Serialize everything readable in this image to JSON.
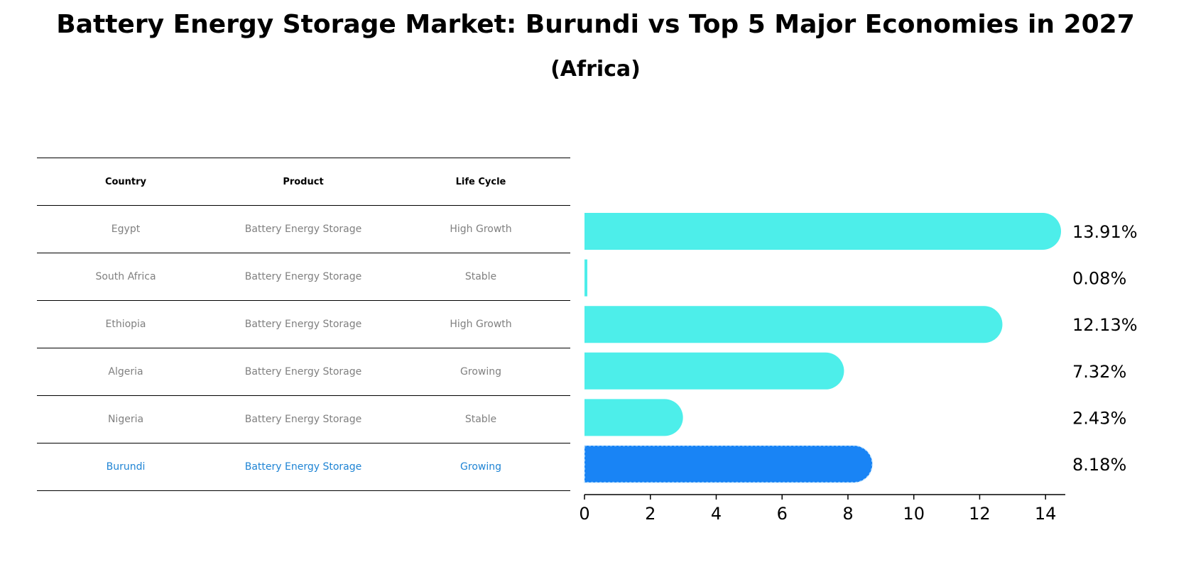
{
  "title": "Battery Energy Storage Market: Burundi vs Top 5 Major Economies in 2027",
  "subtitle": "(Africa)",
  "table": {
    "headers": [
      "Country",
      "Product",
      "Life Cycle"
    ],
    "rows": [
      [
        "Egypt",
        "Battery Energy Storage",
        "High Growth"
      ],
      [
        "South Africa",
        "Battery Energy Storage",
        "Stable"
      ],
      [
        "Ethiopia",
        "Battery Energy Storage",
        "High Growth"
      ],
      [
        "Algeria",
        "Battery Energy Storage",
        "Growing"
      ],
      [
        "Nigeria",
        "Battery Energy Storage",
        "Stable"
      ],
      [
        "Burundi",
        "Battery Energy Storage",
        "Growing"
      ]
    ],
    "highlight_row": 5
  },
  "chart_data": {
    "type": "bar",
    "orientation": "horizontal",
    "categories": [
      "Egypt",
      "South Africa",
      "Ethiopia",
      "Algeria",
      "Nigeria",
      "Burundi"
    ],
    "values": [
      13.91,
      0.08,
      12.13,
      7.32,
      2.43,
      8.18
    ],
    "value_labels": [
      "13.91%",
      "0.08%",
      "12.13%",
      "7.32%",
      "2.43%",
      "8.18%"
    ],
    "xlim": [
      0,
      14.6
    ],
    "xticks": [
      0,
      2,
      4,
      6,
      8,
      10,
      12,
      14
    ],
    "xtick_labels": [
      "0",
      "2",
      "4",
      "6",
      "8",
      "10",
      "12",
      "14"
    ],
    "highlight_index": 5,
    "colors": {
      "bar": "#4deeea",
      "highlight": "#1984f5",
      "text": "#000000"
    }
  }
}
